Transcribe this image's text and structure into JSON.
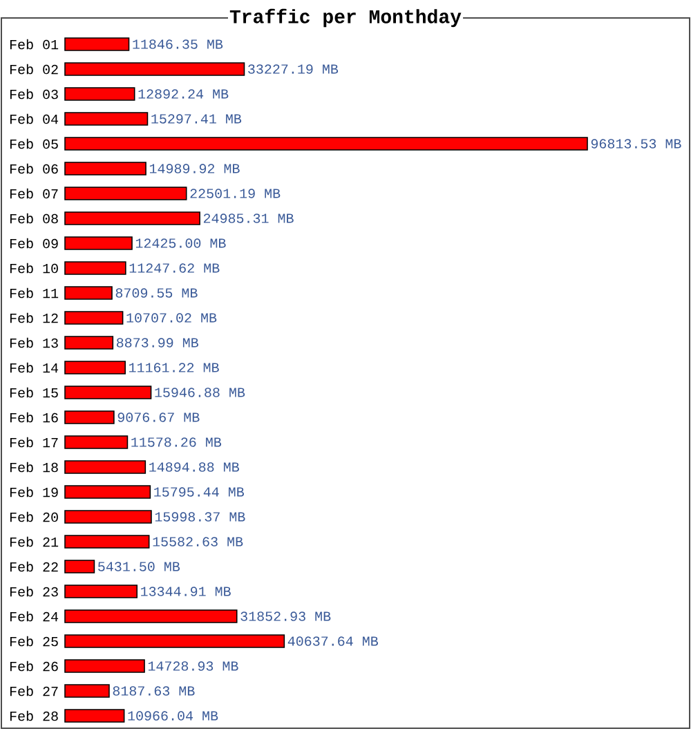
{
  "chart_data": {
    "type": "bar",
    "orientation": "horizontal",
    "title": "Traffic per Monthday",
    "color": "#ff0000",
    "categories": [
      "Feb 01",
      "Feb 02",
      "Feb 03",
      "Feb 04",
      "Feb 05",
      "Feb 06",
      "Feb 07",
      "Feb 08",
      "Feb 09",
      "Feb 10",
      "Feb 11",
      "Feb 12",
      "Feb 13",
      "Feb 14",
      "Feb 15",
      "Feb 16",
      "Feb 17",
      "Feb 18",
      "Feb 19",
      "Feb 20",
      "Feb 21",
      "Feb 22",
      "Feb 23",
      "Feb 24",
      "Feb 25",
      "Feb 26",
      "Feb 27",
      "Feb 28"
    ],
    "values": [
      11846.35,
      33227.19,
      12892.24,
      15297.41,
      96813.53,
      14989.92,
      22501.19,
      24985.31,
      12425.0,
      11247.62,
      8709.55,
      10707.02,
      8873.99,
      11161.22,
      15946.88,
      9076.67,
      11578.26,
      14894.88,
      15795.44,
      15998.37,
      15582.63,
      5431.5,
      13344.91,
      31852.93,
      40637.64,
      14728.93,
      8187.63,
      10966.04
    ],
    "value_labels": [
      "11846.35 MB",
      "33227.19 MB",
      "12892.24 MB",
      "15297.41 MB",
      "96813.53 MB",
      "14989.92 MB",
      "22501.19 MB",
      "24985.31 MB",
      "12425.00 MB",
      "11247.62 MB",
      "8709.55 MB",
      "10707.02 MB",
      "8873.99 MB",
      "11161.22 MB",
      "15946.88 MB",
      "9076.67 MB",
      "11578.26 MB",
      "14894.88 MB",
      "15795.44 MB",
      "15998.37 MB",
      "15582.63 MB",
      "5431.50 MB",
      "13344.91 MB",
      "31852.93 MB",
      "40637.64 MB",
      "14728.93 MB",
      "8187.63 MB",
      "10966.04 MB"
    ]
  }
}
